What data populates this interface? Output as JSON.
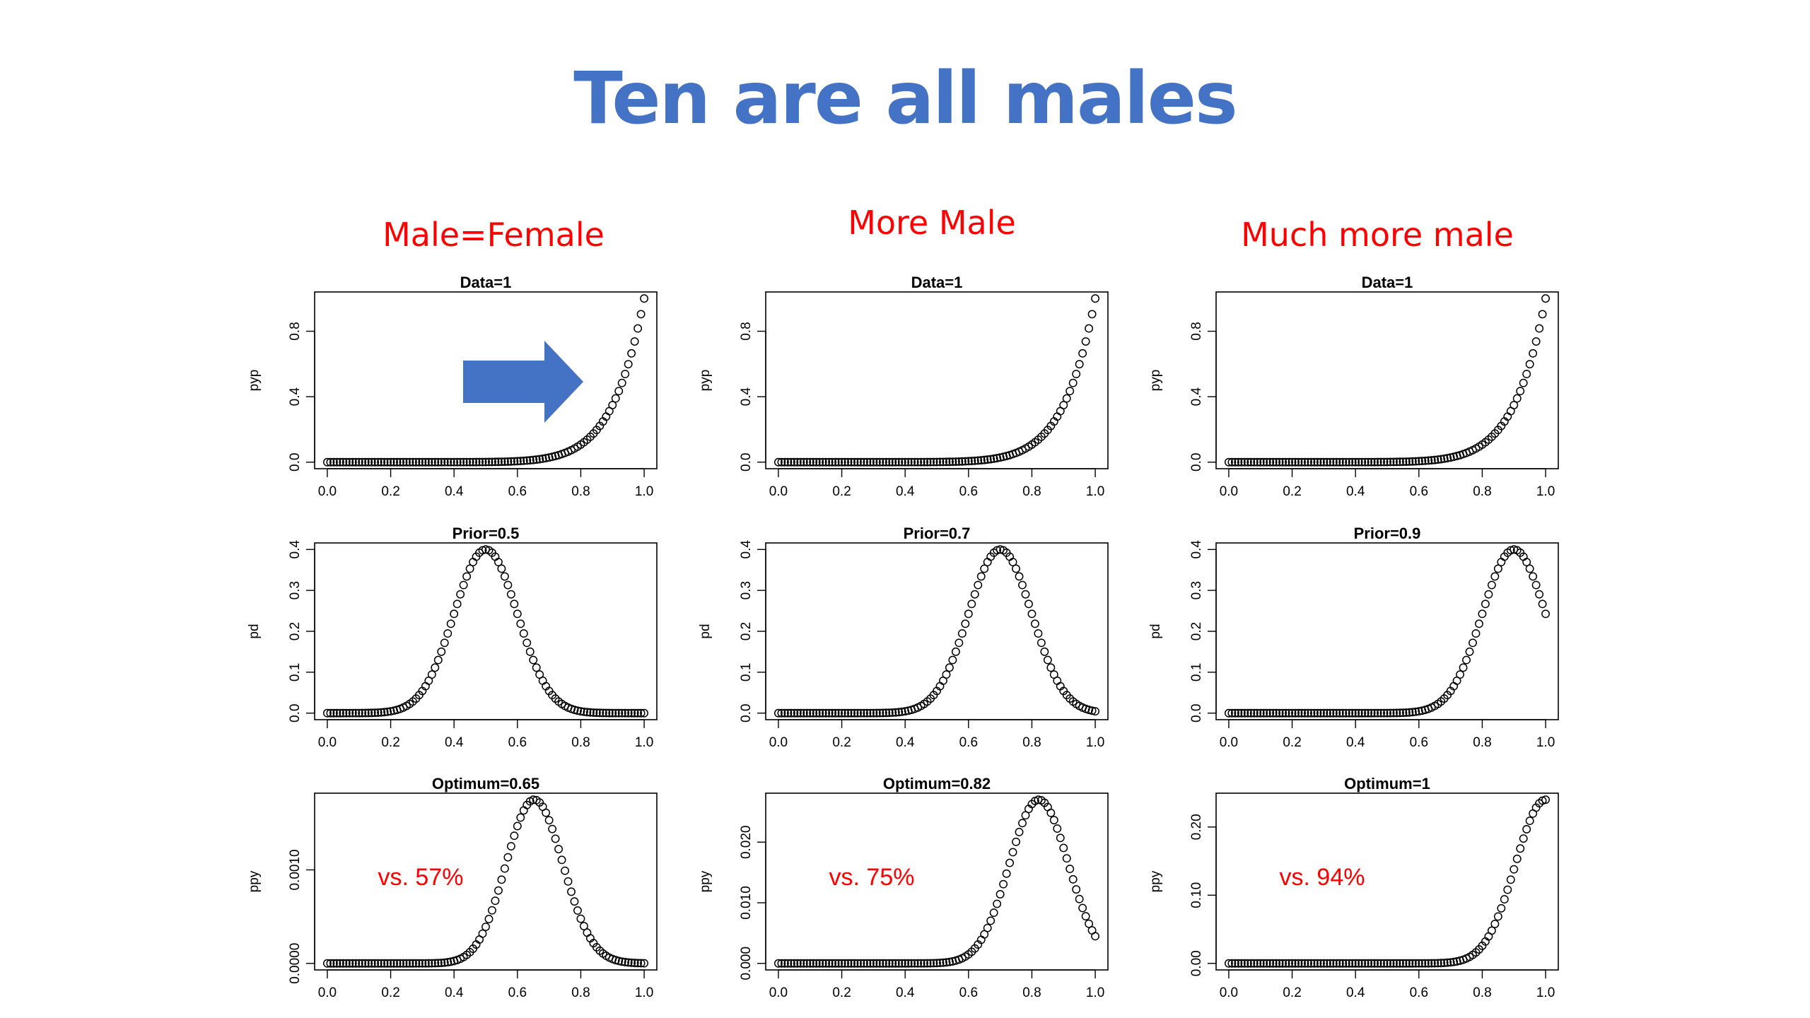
{
  "title": "Ten are all males",
  "colors": {
    "title": "#4472C4",
    "column_heading": "#FF0000",
    "annotation": "#FF0000",
    "arrow": "#4472C4",
    "axis": "#000000"
  },
  "columns": [
    {
      "heading": "Male=Female"
    },
    {
      "heading": "More Male"
    },
    {
      "heading": "Much more male"
    }
  ],
  "arrow_icon": "right-arrow-icon",
  "chart_data": [
    {
      "id": "c1r1",
      "type": "scatter",
      "title": "Data=1",
      "xlabel": "",
      "ylabel": "pyp",
      "xlim": [
        0,
        1
      ],
      "ylim": [
        0,
        1
      ],
      "xticks": [
        "0.0",
        "0.2",
        "0.4",
        "0.6",
        "0.8",
        "1.0"
      ],
      "yticks": [
        "0.0",
        "0.4",
        "0.8"
      ],
      "fn": "pow10",
      "params": {},
      "annotation": "",
      "arrow": true
    },
    {
      "id": "c2r1",
      "type": "scatter",
      "title": "Data=1",
      "xlabel": "",
      "ylabel": "pyp",
      "xlim": [
        0,
        1
      ],
      "ylim": [
        0,
        1
      ],
      "xticks": [
        "0.0",
        "0.2",
        "0.4",
        "0.6",
        "0.8",
        "1.0"
      ],
      "yticks": [
        "0.0",
        "0.4",
        "0.8"
      ],
      "fn": "pow10",
      "params": {},
      "annotation": ""
    },
    {
      "id": "c3r1",
      "type": "scatter",
      "title": "Data=1",
      "xlabel": "",
      "ylabel": "pyp",
      "xlim": [
        0,
        1
      ],
      "ylim": [
        0,
        1
      ],
      "xticks": [
        "0.0",
        "0.2",
        "0.4",
        "0.6",
        "0.8",
        "1.0"
      ],
      "yticks": [
        "0.0",
        "0.4",
        "0.8"
      ],
      "fn": "pow10",
      "params": {},
      "annotation": ""
    },
    {
      "id": "c1r2",
      "type": "scatter",
      "title": "Prior=0.5",
      "xlabel": "",
      "ylabel": "pd",
      "xlim": [
        0,
        1
      ],
      "ylim": [
        0,
        0.4
      ],
      "xticks": [
        "0.0",
        "0.2",
        "0.4",
        "0.6",
        "0.8",
        "1.0"
      ],
      "yticks": [
        "0.0",
        "0.1",
        "0.2",
        "0.3",
        "0.4"
      ],
      "fn": "gauss",
      "params": {
        "mu": 0.5,
        "sigma": 0.1,
        "peak": 0.4
      },
      "annotation": ""
    },
    {
      "id": "c2r2",
      "type": "scatter",
      "title": "Prior=0.7",
      "xlabel": "",
      "ylabel": "pd",
      "xlim": [
        0,
        1
      ],
      "ylim": [
        0,
        0.4
      ],
      "xticks": [
        "0.0",
        "0.2",
        "0.4",
        "0.6",
        "0.8",
        "1.0"
      ],
      "yticks": [
        "0.0",
        "0.1",
        "0.2",
        "0.3",
        "0.4"
      ],
      "fn": "gauss",
      "params": {
        "mu": 0.7,
        "sigma": 0.1,
        "peak": 0.4
      },
      "annotation": ""
    },
    {
      "id": "c3r2",
      "type": "scatter",
      "title": "Prior=0.9",
      "xlabel": "",
      "ylabel": "pd",
      "xlim": [
        0,
        1
      ],
      "ylim": [
        0,
        0.4
      ],
      "xticks": [
        "0.0",
        "0.2",
        "0.4",
        "0.6",
        "0.8",
        "1.0"
      ],
      "yticks": [
        "0.0",
        "0.1",
        "0.2",
        "0.3",
        "0.4"
      ],
      "fn": "gauss",
      "params": {
        "mu": 0.9,
        "sigma": 0.1,
        "peak": 0.4
      },
      "annotation": ""
    },
    {
      "id": "c1r3",
      "type": "scatter",
      "title": "Optimum=0.65",
      "xlabel": "",
      "ylabel": "ppy",
      "xlim": [
        0,
        1
      ],
      "ylim": [
        0,
        0.00175
      ],
      "xticks": [
        "0.0",
        "0.2",
        "0.4",
        "0.6",
        "0.8",
        "1.0"
      ],
      "yticks": [
        "0.0000",
        "0.0010"
      ],
      "ytick_values": [
        0,
        0.001
      ],
      "fn": "post",
      "params": {
        "mu": 0.5,
        "sigma": 0.1,
        "peak": 0.00175
      },
      "annotation": "vs. 57%"
    },
    {
      "id": "c2r3",
      "type": "scatter",
      "title": "Optimum=0.82",
      "xlabel": "",
      "ylabel": "ppy",
      "xlim": [
        0,
        1
      ],
      "ylim": [
        0,
        0.027
      ],
      "xticks": [
        "0.0",
        "0.2",
        "0.4",
        "0.6",
        "0.8",
        "1.0"
      ],
      "yticks": [
        "0.000",
        "0.010",
        "0.020"
      ],
      "ytick_values": [
        0,
        0.01,
        0.02
      ],
      "fn": "post",
      "params": {
        "mu": 0.7,
        "sigma": 0.1,
        "peak": 0.027
      },
      "annotation": "vs. 75%"
    },
    {
      "id": "c3r3",
      "type": "scatter",
      "title": "Optimum=1",
      "xlabel": "",
      "ylabel": "ppy",
      "xlim": [
        0,
        1
      ],
      "ylim": [
        0,
        0.24
      ],
      "xticks": [
        "0.0",
        "0.2",
        "0.4",
        "0.6",
        "0.8",
        "1.0"
      ],
      "yticks": [
        "0.00",
        "0.10",
        "0.20"
      ],
      "ytick_values": [
        0,
        0.1,
        0.2
      ],
      "fn": "post",
      "params": {
        "mu": 0.9,
        "sigma": 0.1,
        "peak": 0.24
      },
      "annotation": "vs. 94%"
    }
  ]
}
